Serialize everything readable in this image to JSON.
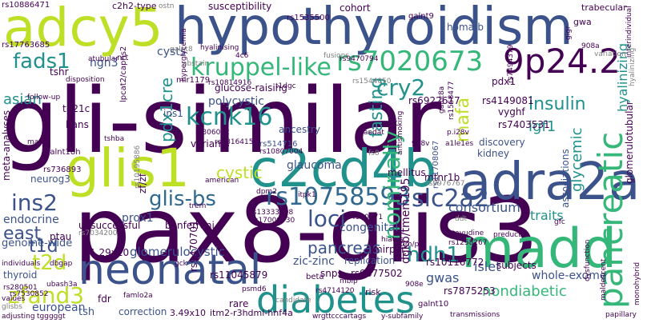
{
  "palette": {
    "dark_purple": "#440154",
    "indigo": "#3b528b",
    "blue": "#31688e",
    "teal": "#21918c",
    "green_teal": "#1f9e89",
    "green": "#35b779",
    "lime": "#90d743",
    "yellow": "#bddf26",
    "bright_yellow": "#fde725",
    "grey": "#808080"
  },
  "words": {
    "gli_similar": "gli-similar",
    "pax8_glis3": "pax8-glis3",
    "hypothyroidism": "hypothyroidism",
    "adcy5": "adcy5",
    "glis1": "glis1",
    "c2cd4b": "c2cd4b",
    "adra2a": "adra2a",
    "madd": "madd",
    "neonatal": "neonatal",
    "diabetes": "diabetes",
    "pancreatic": "pancreatic",
    "p9p24_2": "9p24.2",
    "rs7020673": "rs7020673",
    "rs10758593": "rs10758593",
    "kruppel_like": "kruppel-like",
    "kcnk16": "kcnk16",
    "cry2": "cry2",
    "slc2a2": "slc2a2",
    "fads1": "fads1",
    "ins2": "ins2",
    "glis_bs": "glis-bs",
    "loci": "loci",
    "nominally": "nominally",
    "zfand3": "zfand3",
    "t2d": "t2d",
    "east": "east",
    "t1d": "t1d",
    "hdh1": "hdh1",
    "pancreas": "pancreas",
    "fasting": "fasting",
    "insulin": "insulin",
    "mafa": "mafa",
    "cystic": "cystic",
    "pdx1cre": "pdx1cre",
    "asian": "asian",
    "nondiabetic": "nondiabetic",
    "glomerulocystic": "glomerulocystic",
    "glaucoma": "glaucoma",
    "mtnr1b": "mtnr1b",
    "consortium": "consortium",
    "traits": "traits",
    "igf1": "igf1",
    "glycemic": "glycemic",
    "hyalinizing": "hyalinizing",
    "cohort": "cohort",
    "susceptibility": "susceptibility",
    "glucose_raising": "glucose-raising",
    "polycystic": "polycystic",
    "ins1": "ins1",
    "rs514716": "rs514716",
    "mellitus": "mellitus",
    "rs11708067": "rs11708067",
    "vyghf": "vyghf",
    "rs4149081": "rs4149081",
    "rs6922617": "rs6922617",
    "rs7403531": "rs7403531",
    "discovery": "discovery",
    "kidney": "kidney",
    "trabecular": "trabecular",
    "gwa": "gwa",
    "homa_b": "homa-b",
    "galnt9": "galnt9",
    "rs1535500": "rs1535500",
    "c2h2_type": "c2h2-type",
    "rs10886471": "rs10886471",
    "rs17763685": "rs17763685",
    "ostn": "ostn",
    "rs9470794": "rs9470794",
    "rs7494379": "rs7494379",
    "pdx1": "pdx1",
    "ngn3": "ngn3",
    "tshr": "tshr",
    "nrt": "nrt",
    "cysts": "cysts",
    "lpcat2_capns2": "lpcat2/capns2",
    "mir1179": "mir1179",
    "rs10814916": "rs10814916",
    "fusions": "fusions",
    "rs1544050": "rs1544050",
    "t1dgc": "t1dgc",
    "hans": "hans",
    "t521c": "t521c",
    "meta_analyses": "meta-analyses",
    "neurog3": "neurog3",
    "endocrine": "endocrine",
    "unsuccessful": "unsuccessful",
    "prox1": "prox1",
    "bonferroni": "bonferroni",
    "zf_zf": "zf/zf",
    "galnt18h": "galnt18h",
    "rs736893": "rs736893",
    "variants": "variants",
    "ancestry": "ancestry",
    "rs806052": "rs806052",
    "rs3816415": "rs3816415",
    "rs10807004": "rs10807004",
    "dpm2": "dpm2",
    "itpk1": "itpk1",
    "rs13333308": "rs13333308",
    "rs17000730": "rs17000730",
    "congenital": "congenital",
    "rs14940771": "rs14940771",
    "replication": "replication",
    "rs9877502": "rs9877502",
    "gwas": "gwas",
    "islet": "islet",
    "subjects": "subjects",
    "rs10116772": "rs10116772",
    "rs1258267": "rs1258267",
    "whole_exome": "whole-exome",
    "associations": "associations",
    "glomerulotubular": "glomerulotubular",
    "rs9976767": "rs9976767",
    "genome_wide": "genome-wide",
    "ptau": "ptau",
    "thyroid": "thyroid",
    "p1_29x10": "1.29x10",
    "european": "european",
    "tsh": "tsh",
    "fdr": "fdr",
    "correction": "correction",
    "p3_49x10": "3.49x10",
    "itm2_r3hdml_hnf4a": "itm2-r3hdml-hnf4a",
    "rare": "rare",
    "rs11045879": "rs11045879",
    "zic_zinc": "zic-zinc",
    "snps": "snps",
    "beta": "beta",
    "dgkb_tmem195": "dgkb/tmem195",
    "rs7875253": "rs7875253",
    "rs9470701": "rs9470701",
    "galnt10": "galnt10",
    "wrgttcccartags": "wrgttcccartags",
    "y_subfamily": "y-subfamily",
    "transmissions": "transmissions",
    "papillary": "papillary",
    "monohybrid": "monohybrid",
    "dysfunction": "dysfunction",
    "maldescent": "maldescent",
    "stavudine": "stavudine",
    "hiatus": "hiatus",
    "mirpur": "mirpur",
    "tjr": "tjr",
    "risk": "risk",
    "rs4714120": "rs4714120",
    "candidate": "candidate",
    "rs280501": "rs280501",
    "adjusting": "adjusting",
    "tgggggt": "tgggggt",
    "glisbs": "glisbs",
    "values": "values",
    "individuals": "individuals",
    "dbgap": "dbgap",
    "gck": "gck",
    "trem": "trem",
    "american": "american",
    "rs10195886": "rs10195886",
    "p908v": "908v",
    "a1le1es": "a1le1es",
    "p_i28v": "p.i28v",
    "antismoking": "antismoking",
    "aadat": "aadat",
    "tshba": "tshba",
    "maaa": "maaa",
    "follow_up": "follow-up",
    "abstain": "abstain",
    "disposition": "disposition",
    "atubular": "atubular",
    "hyalinising": "hyalinising",
    "galnt8": "galnt8",
    "hyperglycemia": "hyperglycemia",
    "p4c6": "4c6",
    "p_908a": "908a",
    "variation": "variation",
    "interindividual": "interindividual",
    "gigr": "gigr",
    "rs1558477": "rs1558477",
    "galnt8a": "galnt8a",
    "dm_pm": "dm/pm",
    "preductal": "preductal",
    "ddt": "ddt",
    "psmd6": "psmd6",
    "rs7034200": "rs7034200",
    "famlo2a": "famlo2a",
    "p_908e": "908e",
    "ubash3a": "ubash3a",
    "rs7530852": "rs7530852",
    "gfc": "gfc",
    "fs8": "fs8",
    "mbip": "mbip",
    "hyalinizing2": "hyalinizing"
  }
}
